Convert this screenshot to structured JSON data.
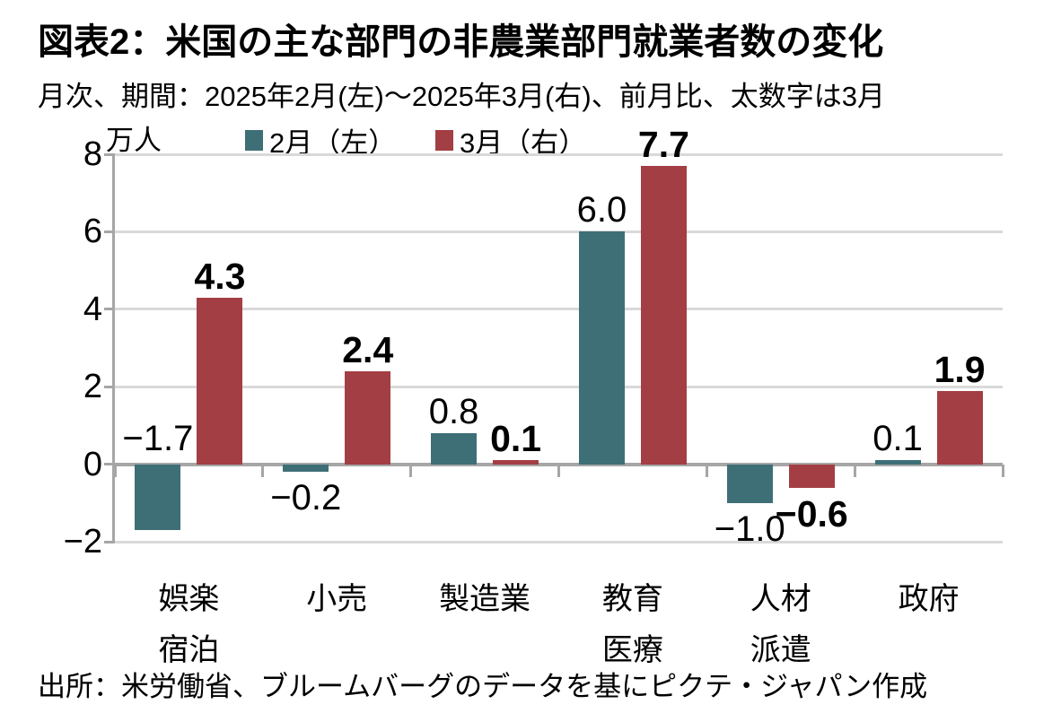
{
  "title": "図表2：米国の主な部門の非農業部門就業者数の変化",
  "subtitle": "月次、期間：2025年2月(左)～2025年3月(右)、前月比、太数字は3月",
  "source": "出所：米労働省、ブルームバーグのデータを基にピクテ・ジャパン作成",
  "chart_data": {
    "type": "bar",
    "title": "図表2：米国の主な部門の非農業部門就業者数の変化",
    "unit_label": "万人",
    "ylim": [
      -2,
      8
    ],
    "grid": true,
    "legend_position": "top",
    "gridline_color": "#d9d9d9",
    "axis_color": "#a6a6a6",
    "yticks": [
      {
        "value": 8,
        "label": "8"
      },
      {
        "value": 6,
        "label": "6"
      },
      {
        "value": 4,
        "label": "4"
      },
      {
        "value": 2,
        "label": "2"
      },
      {
        "value": 0,
        "label": "0"
      },
      {
        "value": -2,
        "label": "−2"
      }
    ],
    "categories": [
      {
        "id": "goraku-shukuhaku",
        "lines": [
          "娯楽",
          "宿泊"
        ]
      },
      {
        "id": "kouri",
        "lines": [
          "小売"
        ]
      },
      {
        "id": "seizougyou",
        "lines": [
          "製造業"
        ]
      },
      {
        "id": "kyouiku-iryou",
        "lines": [
          "教育",
          "医療"
        ]
      },
      {
        "id": "jinzai-haken",
        "lines": [
          "人材",
          "派遣"
        ]
      },
      {
        "id": "seifu",
        "lines": [
          "政府"
        ]
      }
    ],
    "series": [
      {
        "name": "2月（左）",
        "color": "#3e6f77",
        "bold_labels": false,
        "points": [
          {
            "value": -1.7,
            "label": "−1.7",
            "label_pos": "above_zero"
          },
          {
            "value": -0.2,
            "label": "−0.2"
          },
          {
            "value": 0.8,
            "label": "0.8"
          },
          {
            "value": 6.0,
            "label": "6.0"
          },
          {
            "value": -1.0,
            "label": "−1.0"
          },
          {
            "value": 0.1,
            "label": "0.1"
          }
        ]
      },
      {
        "name": "3月（右）",
        "color": "#a33e44",
        "bold_labels": true,
        "points": [
          {
            "value": 4.3,
            "label": "4.3"
          },
          {
            "value": 2.4,
            "label": "2.4"
          },
          {
            "value": 0.1,
            "label": "0.1"
          },
          {
            "value": 7.7,
            "label": "7.7"
          },
          {
            "value": -0.6,
            "label": "−0.6"
          },
          {
            "value": 1.9,
            "label": "1.9"
          }
        ]
      }
    ]
  }
}
